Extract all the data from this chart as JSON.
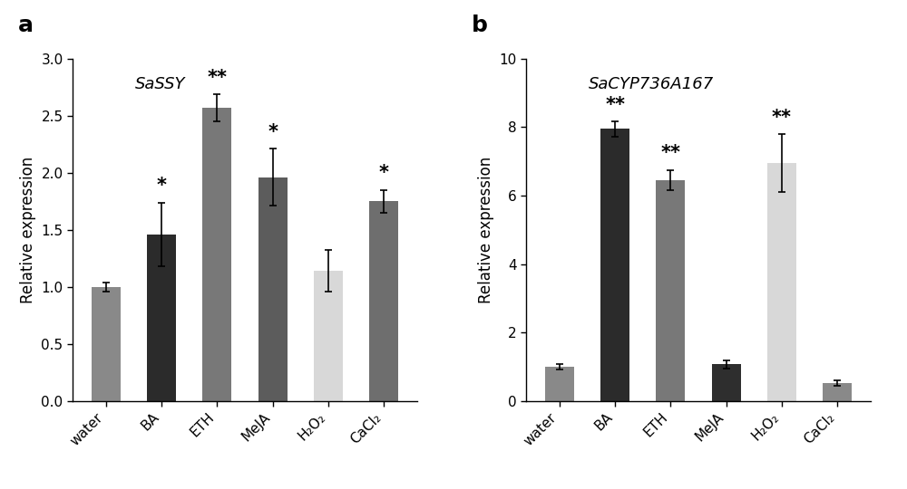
{
  "panel_a": {
    "title": "SaSSY",
    "ylabel": "Relative expression",
    "categories": [
      "water",
      "BA",
      "ETH",
      "MeJA",
      "H₂O₂",
      "CaCl₂"
    ],
    "values": [
      1.0,
      1.46,
      2.57,
      1.96,
      1.14,
      1.75
    ],
    "errors": [
      0.04,
      0.28,
      0.12,
      0.25,
      0.18,
      0.1
    ],
    "colors": [
      "#898989",
      "#2b2b2b",
      "#787878",
      "#5c5c5c",
      "#d8d8d8",
      "#6e6e6e"
    ],
    "significance": [
      "",
      "*",
      "**",
      "*",
      "",
      "*"
    ],
    "ylim": [
      0,
      3.0
    ],
    "yticks": [
      0.0,
      0.5,
      1.0,
      1.5,
      2.0,
      2.5,
      3.0
    ]
  },
  "panel_b": {
    "title": "SaCYP736A167",
    "ylabel": "Relative expression",
    "categories": [
      "water",
      "BA",
      "ETH",
      "MeJA",
      "H₂O₂",
      "CaCl₂"
    ],
    "values": [
      1.0,
      7.95,
      6.45,
      1.07,
      6.95,
      0.52
    ],
    "errors": [
      0.07,
      0.22,
      0.3,
      0.12,
      0.85,
      0.07
    ],
    "colors": [
      "#898989",
      "#2b2b2b",
      "#787878",
      "#2e2e2e",
      "#d8d8d8",
      "#898989"
    ],
    "significance": [
      "",
      "**",
      "**",
      "",
      "**",
      ""
    ],
    "ylim": [
      0,
      10
    ],
    "yticks": [
      0,
      2,
      4,
      6,
      8,
      10
    ]
  },
  "background_color": "#ffffff",
  "label_fontsize": 12,
  "tick_fontsize": 11,
  "title_fontsize": 13,
  "sig_fontsize": 15,
  "bar_width": 0.52
}
